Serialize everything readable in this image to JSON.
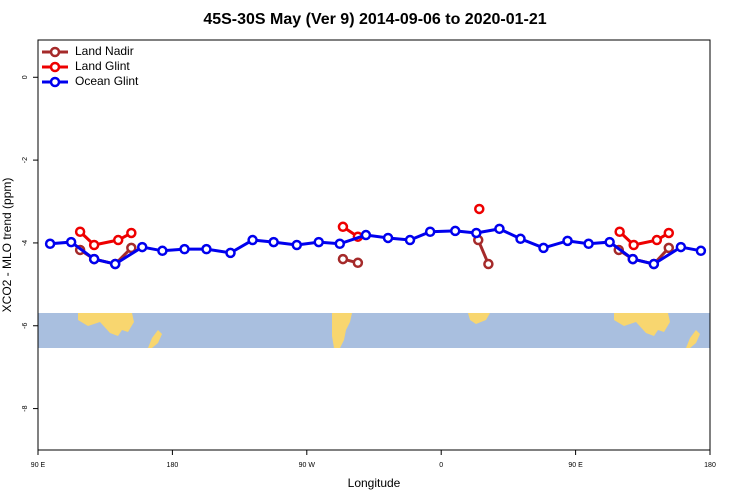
{
  "chart_data": {
    "type": "line",
    "title": "45S-30S May (Ver 9)   2014-09-06 to 2020-01-21",
    "x_label": "Longitude",
    "y_label": "XCO2 - MLO trend (ppm)",
    "xlim": [
      90,
      540
    ],
    "xticks": [
      {
        "value": 90,
        "label": "90 E"
      },
      {
        "value": 180,
        "label": "180"
      },
      {
        "value": 270,
        "label": "90 W"
      },
      {
        "value": 360,
        "label": "0"
      },
      {
        "value": 450,
        "label": "90 E"
      },
      {
        "value": 540,
        "label": "180"
      }
    ],
    "ylim": [
      -9,
      0.9
    ],
    "yticks": [
      0,
      -2,
      -4,
      -6,
      -8
    ],
    "legend": "top-left",
    "series": [
      {
        "name": "Land Nadir",
        "color": "#a52a2a",
        "x": [
          118.2,
          127.6,
          141.7,
          152.5,
          null,
          294.2,
          304.2,
          null,
          384.8,
          391.6,
          null,
          478.9,
          488.3,
          502.4,
          512.4
        ],
        "values": [
          -4.17,
          -4.39,
          -4.51,
          -4.12,
          null,
          -4.39,
          -4.48,
          null,
          -3.93,
          -4.51,
          null,
          -4.17,
          -4.39,
          -4.51,
          -4.12
        ]
      },
      {
        "name": "Land Glint",
        "color": "#ee0000",
        "x": [
          118.2,
          127.6,
          143.7,
          152.5,
          null,
          294.2,
          304.2,
          null,
          385.5,
          null,
          479.5,
          488.9,
          504.4,
          512.4
        ],
        "values": [
          -3.73,
          -4.05,
          -3.93,
          -3.76,
          null,
          -3.61,
          -3.85,
          null,
          -3.18,
          null,
          -3.73,
          -4.05,
          -3.93,
          -3.76
        ]
      },
      {
        "name": "Ocean Glint",
        "color": "#0000ee",
        "x": [
          98.1,
          112.2,
          127.6,
          141.7,
          159.8,
          173.3,
          188.1,
          202.8,
          218.9,
          233.7,
          247.8,
          263.3,
          278.0,
          292.1,
          309.6,
          324.4,
          339.1,
          352.6,
          369.4,
          383.5,
          399.0,
          413.1,
          428.5,
          444.6,
          458.7,
          472.8,
          488.3,
          502.4,
          520.5,
          533.9
        ],
        "values": [
          -4.02,
          -3.98,
          -4.39,
          -4.51,
          -4.1,
          -4.19,
          -4.15,
          -4.15,
          -4.24,
          -3.93,
          -3.98,
          -4.05,
          -3.98,
          -4.02,
          -3.81,
          -3.88,
          -3.93,
          -3.73,
          -3.71,
          -3.76,
          -3.66,
          -3.9,
          -4.12,
          -3.95,
          -4.02,
          -3.98,
          -4.39,
          -4.51,
          -4.1,
          -4.19
        ]
      }
    ]
  }
}
